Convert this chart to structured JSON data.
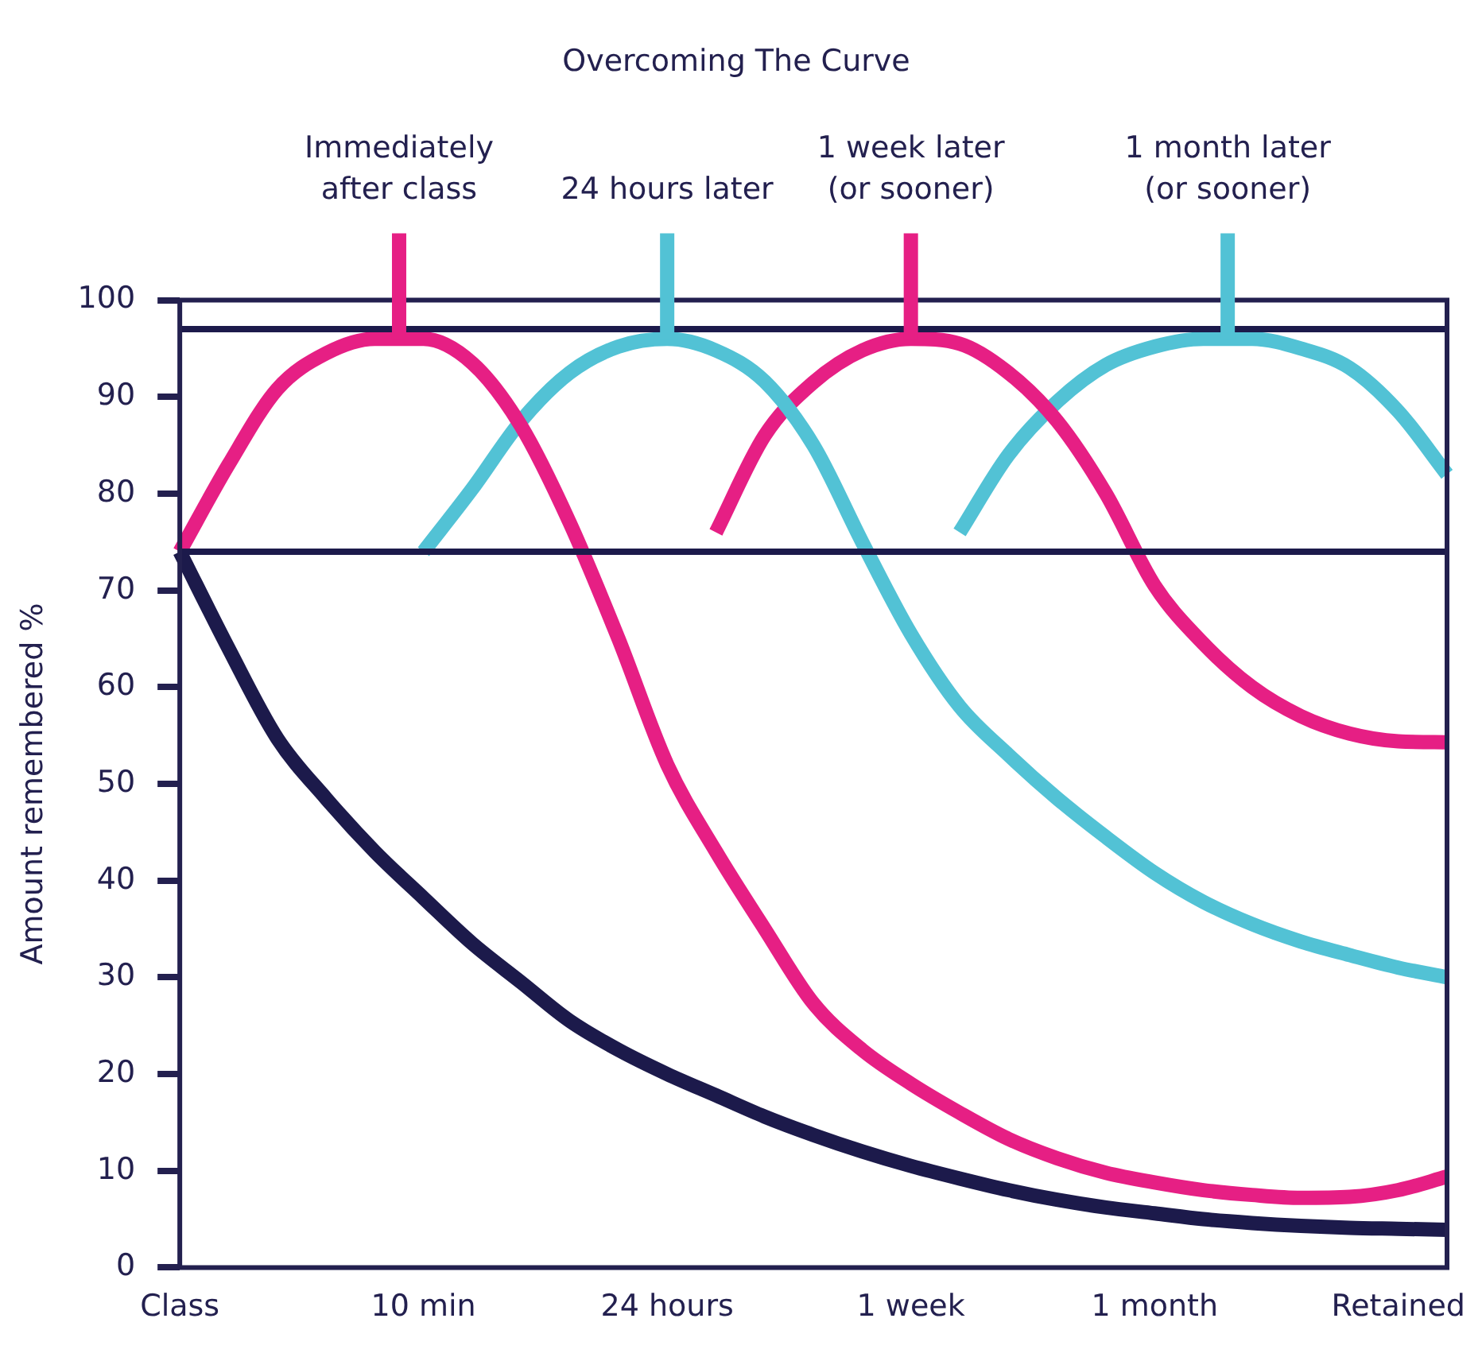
{
  "chart_data": {
    "type": "line",
    "title": "Overcoming The Curve",
    "ylabel": "Amount remembered %",
    "categories": [
      "Class",
      null,
      null,
      null,
      null,
      "10 min",
      null,
      null,
      null,
      null,
      "24 hours",
      null,
      null,
      null,
      null,
      "1 week",
      null,
      null,
      null,
      null,
      "1 month",
      null,
      null,
      null,
      null,
      "Retained",
      null
    ],
    "ylim": [
      0,
      100
    ],
    "yticks": [
      0,
      10,
      20,
      30,
      40,
      50,
      60,
      70,
      80,
      90,
      100
    ],
    "grid": false,
    "legend": false,
    "marker": "none",
    "line_style": "solid",
    "series": [
      {
        "color": "#1c1a4b",
        "values": [
          74,
          64,
          54.7,
          48.5,
          43,
          38.2,
          33.5,
          29.5,
          25.5,
          22.5,
          20,
          17.8,
          15.6,
          13.7,
          12,
          10.5,
          9.2,
          8,
          7,
          6.2,
          5.6,
          5,
          4.6,
          4.3,
          4.1,
          4,
          3.9
        ]
      },
      {
        "color": "#e61f84",
        "values": [
          74,
          83,
          90.8,
          94.5,
          96,
          96,
          93.5,
          87,
          77,
          65,
          52,
          43,
          35,
          27.3,
          22.5,
          19,
          16,
          13.3,
          11.3,
          9.8,
          8.8,
          8,
          7.5,
          7.2,
          7.3,
          8,
          9.4
        ]
      },
      {
        "color": "#52c2d5",
        "values": [
          null,
          null,
          null,
          null,
          null,
          74,
          80.5,
          87.5,
          92.5,
          95.2,
          96,
          94.8,
          91.6,
          85,
          75,
          65.5,
          58,
          53,
          48.5,
          44.5,
          40.8,
          37.8,
          35.5,
          33.7,
          32.3,
          31,
          30
        ]
      },
      {
        "color": "#e61f84",
        "values": [
          null,
          null,
          null,
          null,
          null,
          null,
          null,
          null,
          null,
          null,
          null,
          76,
          86,
          91.5,
          94.8,
          96,
          95.5,
          92.5,
          87.5,
          80,
          70.5,
          64.5,
          60,
          57,
          55.2,
          54.4,
          54.3
        ]
      },
      {
        "color": "#52c2d5",
        "values": [
          null,
          null,
          null,
          null,
          null,
          null,
          null,
          null,
          null,
          null,
          null,
          null,
          null,
          null,
          null,
          null,
          76,
          84,
          89.5,
          93.3,
          95.2,
          96,
          96,
          95,
          93,
          88.5,
          82
        ]
      }
    ],
    "ref_lines": [
      {
        "axis": "y",
        "value": 97,
        "color": "#1c1a4b"
      },
      {
        "axis": "y",
        "value": 74,
        "color": "#1c1a4b"
      }
    ],
    "annotations": [
      {
        "text": "Immediately after class",
        "y": 96
      },
      {
        "text": "24 hours later",
        "y": 96
      },
      {
        "text": "1 week later (or sooner)",
        "y": 96
      },
      {
        "text": "1 month later (or sooner)",
        "y": 96
      }
    ]
  }
}
